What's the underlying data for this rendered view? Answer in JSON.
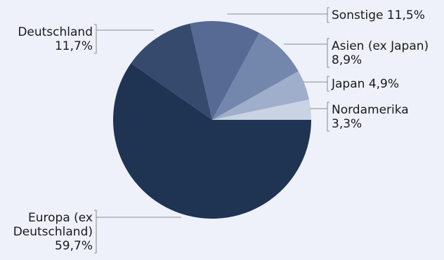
{
  "chart_data": {
    "type": "pie",
    "title": "",
    "start_angle_deg": 0,
    "direction": "counterclockwise",
    "slices": [
      {
        "key": "nordamerika",
        "label_lines": [
          "Nordamerika",
          "3,3%"
        ],
        "value": 3.3,
        "color": "#c9d3e3"
      },
      {
        "key": "japan",
        "label_lines": [
          "Japan 4,9%"
        ],
        "value": 4.9,
        "color": "#9eaecb"
      },
      {
        "key": "asien",
        "label_lines": [
          "Asien (ex Japan)",
          "8,9%"
        ],
        "value": 8.9,
        "color": "#7387ac"
      },
      {
        "key": "sonstige",
        "label_lines": [
          "Sonstige 11,5%"
        ],
        "value": 11.5,
        "color": "#566a94"
      },
      {
        "key": "deutschland",
        "label_lines": [
          "Deutschland",
          "11,7%"
        ],
        "value": 11.7,
        "color": "#364a6e"
      },
      {
        "key": "europa",
        "label_lines": [
          "Europa (ex",
          "Deutschland)",
          "59,7%"
        ],
        "value": 59.7,
        "color": "#1f3353"
      }
    ]
  }
}
